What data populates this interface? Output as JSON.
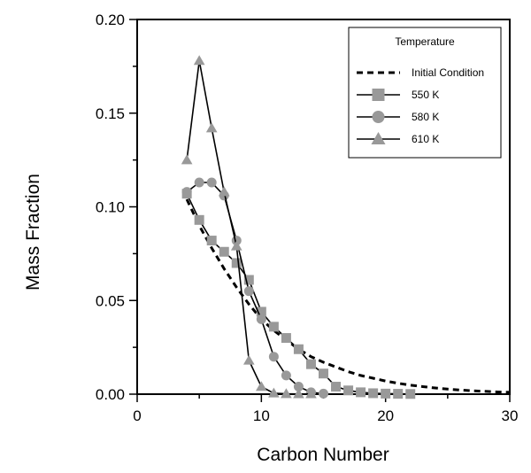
{
  "chart_data": {
    "type": "line",
    "title": "",
    "xlabel": "Carbon Number",
    "ylabel": "Mass Fraction",
    "xlim": [
      0,
      30
    ],
    "ylim": [
      0,
      0.2
    ],
    "x_ticks": [
      0,
      10,
      20,
      30
    ],
    "x_tick_labels": [
      "0",
      "10",
      "20",
      "30"
    ],
    "y_ticks": [
      0,
      0.05,
      0.1,
      0.15,
      0.2
    ],
    "y_tick_labels": [
      "0.00",
      "0.05",
      "0.10",
      "0.15",
      "0.20"
    ],
    "grid": false,
    "legend": {
      "title": "Temperature",
      "position": "top-right"
    },
    "series": [
      {
        "name": "Initial Condition",
        "style": "dashed",
        "marker": "none",
        "color": "#000000",
        "x": [
          4,
          5,
          6,
          7,
          8,
          9,
          10,
          11,
          12,
          13,
          14,
          15,
          16,
          17,
          18,
          19,
          20,
          21,
          22,
          23,
          24,
          25,
          26,
          27,
          28,
          29,
          30
        ],
        "y": [
          0.104,
          0.09,
          0.078,
          0.067,
          0.057,
          0.048,
          0.04,
          0.034,
          0.029,
          0.024,
          0.02,
          0.017,
          0.0145,
          0.012,
          0.01,
          0.0085,
          0.007,
          0.0058,
          0.0048,
          0.004,
          0.0033,
          0.0027,
          0.0022,
          0.0018,
          0.0015,
          0.0012,
          0.001
        ]
      },
      {
        "name": "550 K",
        "style": "solid",
        "marker": "square",
        "color": "#000000",
        "marker_color": "#999999",
        "x": [
          4,
          5,
          6,
          7,
          8,
          9,
          10,
          11,
          12,
          13,
          14,
          15,
          16,
          17,
          18,
          19,
          20,
          21,
          22
        ],
        "y": [
          0.107,
          0.093,
          0.082,
          0.076,
          0.07,
          0.061,
          0.044,
          0.036,
          0.03,
          0.024,
          0.016,
          0.011,
          0.004,
          0.002,
          0.001,
          0.0005,
          0.0003,
          0.0002,
          0.0001
        ]
      },
      {
        "name": "580 K",
        "style": "solid",
        "marker": "circle",
        "color": "#000000",
        "marker_color": "#999999",
        "x": [
          4,
          5,
          6,
          7,
          8,
          9,
          10,
          11,
          12,
          13,
          14,
          15
        ],
        "y": [
          0.108,
          0.113,
          0.113,
          0.106,
          0.082,
          0.055,
          0.04,
          0.02,
          0.01,
          0.004,
          0.001,
          0.0003
        ]
      },
      {
        "name": "610 K",
        "style": "solid",
        "marker": "triangle",
        "color": "#000000",
        "marker_color": "#999999",
        "x": [
          4,
          5,
          6,
          7,
          8,
          9,
          10,
          11,
          12,
          13,
          14
        ],
        "y": [
          0.125,
          0.178,
          0.142,
          0.108,
          0.079,
          0.018,
          0.004,
          0.0005,
          0.0002,
          0.0001,
          0.0001
        ]
      }
    ]
  }
}
